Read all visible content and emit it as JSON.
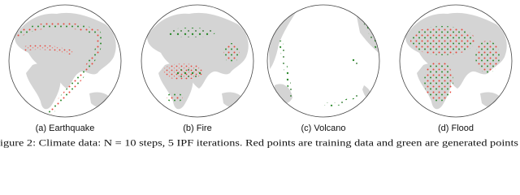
{
  "subfigures": [
    {
      "caption": "(a) Earthquake"
    },
    {
      "caption": "(b) Fire"
    },
    {
      "caption": "(c) Volcano"
    },
    {
      "caption": "(d) Flood"
    }
  ],
  "figure_caption": "igure 2: Climate data: N = 10 steps, 5 IPF iterations. Red points are training data and green are generated points"
}
